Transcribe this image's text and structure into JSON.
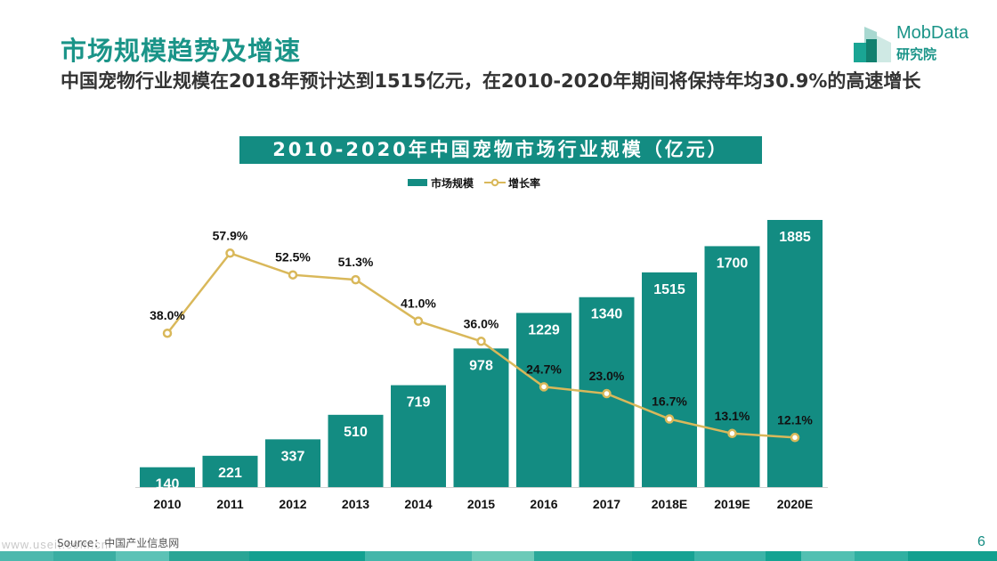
{
  "header": {
    "title": "市场规模趋势及增速",
    "subtitle": "中国宠物行业规模在2018年预计达到1515亿元，在2010-2020年期间将保持年均30.9%的高速增长"
  },
  "logo": {
    "name": "MobData",
    "sub": "研究院",
    "icon": "building-blocks-icon"
  },
  "colors": {
    "accent": "#1a9488",
    "bar": "#138c82",
    "line": "#d9b85a",
    "text_dark": "#333333"
  },
  "chart_data": {
    "type": "bar",
    "title": "2010-2020年中国宠物市场行业规模（亿元）",
    "categories": [
      "2010",
      "2011",
      "2012",
      "2013",
      "2014",
      "2015",
      "2016",
      "2017",
      "2018E",
      "2019E",
      "2020E"
    ],
    "series": [
      {
        "name": "市场规模",
        "type": "bar",
        "values": [
          140,
          221,
          337,
          510,
          719,
          978,
          1229,
          1340,
          1515,
          1700,
          1885
        ],
        "labels": [
          "140",
          "221",
          "337",
          "510",
          "719",
          "978",
          "1229",
          "1340",
          "1515",
          "1700",
          "1885"
        ]
      },
      {
        "name": "增长率",
        "type": "line",
        "values": [
          38.0,
          57.9,
          52.5,
          51.3,
          41.0,
          36.0,
          24.7,
          23.0,
          16.7,
          13.1,
          12.1
        ],
        "labels": [
          "38.0%",
          "57.9%",
          "52.5%",
          "51.3%",
          "41.0%",
          "36.0%",
          "24.7%",
          "23.0%",
          "16.7%",
          "13.1%",
          "12.1%"
        ]
      }
    ],
    "xlabel": "",
    "ylabel": "",
    "ylim": [
      0,
      1885
    ],
    "y2lim": [
      0,
      66
    ],
    "grid": false,
    "legend": {
      "position": "top-center",
      "items": [
        "市场规模",
        "增长率"
      ]
    }
  },
  "footer": {
    "source": "Source：中国产业信息网",
    "watermark": "www.useit.com.cn",
    "page_number": "6"
  }
}
